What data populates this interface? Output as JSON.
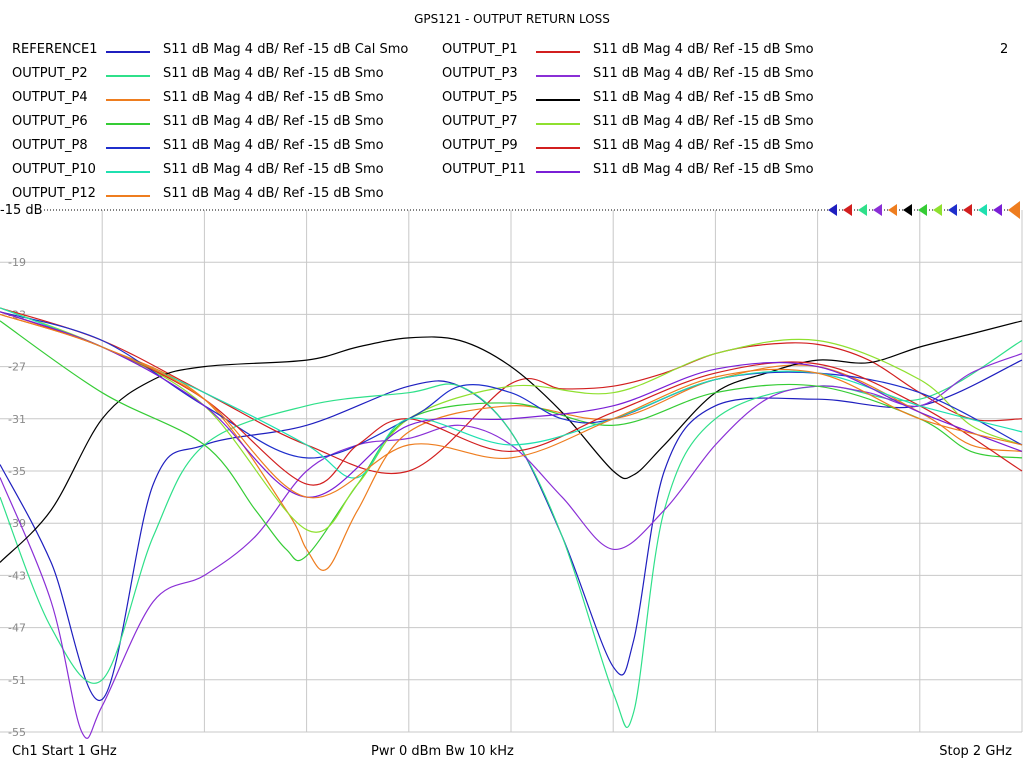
{
  "title": "GPS121 - OUTPUT RETURN LOSS",
  "channel_number": "2",
  "reference_label": "-15 dB",
  "footer": {
    "start": "Ch1  Start  1 GHz",
    "power": "Pwr  0 dBm  Bw  10 kHz",
    "stop": "Stop  2 GHz"
  },
  "legend": [
    {
      "name": "REFERENCE1",
      "desc": "S11  dB Mag  4 dB/ Ref -15 dB  Cal Smo",
      "color": "#1f1fbf"
    },
    {
      "name": "OUTPUT_P1",
      "desc": "S11  dB Mag  4 dB/ Ref -15 dB  Smo",
      "color": "#d21f1f"
    },
    {
      "name": "OUTPUT_P2",
      "desc": "S11  dB Mag  4 dB/ Ref -15 dB  Smo",
      "color": "#2fe08a"
    },
    {
      "name": "OUTPUT_P3",
      "desc": "S11  dB Mag  4 dB/ Ref -15 dB  Smo",
      "color": "#8a2fd6"
    },
    {
      "name": "OUTPUT_P4",
      "desc": "S11  dB Mag  4 dB/ Ref -15 dB  Smo",
      "color": "#ee7d1f"
    },
    {
      "name": "OUTPUT_P5",
      "desc": "S11  dB Mag  4 dB/ Ref -15 dB  Smo",
      "color": "#000000"
    },
    {
      "name": "OUTPUT_P6",
      "desc": "S11  dB Mag  4 dB/ Ref -15 dB  Smo",
      "color": "#35cc35"
    },
    {
      "name": "OUTPUT_P7",
      "desc": "S11  dB Mag  4 dB/ Ref -15 dB  Smo",
      "color": "#8fe02f"
    },
    {
      "name": "OUTPUT_P8",
      "desc": "S11  dB Mag  4 dB/ Ref -15 dB  Smo",
      "color": "#1f2fcc"
    },
    {
      "name": "OUTPUT_P9",
      "desc": "S11  dB Mag  4 dB/ Ref -15 dB  Smo",
      "color": "#d21f1f"
    },
    {
      "name": "OUTPUT_P10",
      "desc": "S11  dB Mag  4 dB/ Ref -15 dB  Smo",
      "color": "#1fe0b0"
    },
    {
      "name": "OUTPUT_P11",
      "desc": "S11  dB Mag  4 dB/ Ref -15 dB  Smo",
      "color": "#7a1fd6"
    },
    {
      "name": "OUTPUT_P12",
      "desc": "S11  dB Mag  4 dB/ Ref -15 dB  Smo",
      "color": "#ee7d1f"
    }
  ],
  "marker_colors": [
    "#1f1fbf",
    "#d21f1f",
    "#2fe08a",
    "#8a2fd6",
    "#ee7d1f",
    "#000000",
    "#35cc35",
    "#8fe02f",
    "#1f2fcc",
    "#d21f1f",
    "#1fe0b0",
    "#7a1fd6",
    "#ee7d1f"
  ],
  "chart_data": {
    "type": "line",
    "title": "GPS121 - OUTPUT RETURN LOSS",
    "x_unit": "GHz",
    "xlim": [
      1,
      2
    ],
    "ylim": [
      -55,
      -15
    ],
    "y_ticks": [
      -19,
      -23,
      -27,
      -31,
      -35,
      -39,
      -43,
      -47,
      -51,
      -55
    ],
    "grid": true,
    "series": [
      {
        "name": "REFERENCE1",
        "color": "#1f1fbf",
        "x": [
          1.0,
          1.05,
          1.1,
          1.15,
          1.2,
          1.3,
          1.4,
          1.45,
          1.5,
          1.55,
          1.6,
          1.62,
          1.65,
          1.7,
          1.8,
          1.9,
          2.0
        ],
        "y": [
          -34.5,
          -42,
          -52.5,
          -36,
          -33,
          -31.5,
          -28.5,
          -28.5,
          -32,
          -40,
          -50,
          -48,
          -35,
          -30,
          -29.5,
          -30,
          -26.5
        ]
      },
      {
        "name": "OUTPUT_P1",
        "color": "#d21f1f",
        "x": [
          1.0,
          1.1,
          1.2,
          1.3,
          1.4,
          1.5,
          1.55,
          1.6,
          1.65,
          1.7,
          1.75,
          1.8,
          1.85,
          1.9,
          1.95,
          2.0
        ],
        "y": [
          -22.5,
          -25,
          -29,
          -33,
          -35,
          -28.3,
          -28.7,
          -28.5,
          -27.5,
          -26,
          -25.3,
          -25.3,
          -26.5,
          -29,
          -31,
          -31
        ]
      },
      {
        "name": "OUTPUT_P2",
        "color": "#2fe08a",
        "x": [
          1.0,
          1.05,
          1.1,
          1.15,
          1.2,
          1.3,
          1.4,
          1.45,
          1.5,
          1.55,
          1.6,
          1.62,
          1.65,
          1.7,
          1.8,
          1.9,
          2.0
        ],
        "y": [
          -37,
          -47,
          -51,
          -40,
          -33,
          -30,
          -29,
          -28.5,
          -32,
          -40,
          -52,
          -53.5,
          -38,
          -31,
          -28.5,
          -29.5,
          -25
        ]
      },
      {
        "name": "OUTPUT_P3",
        "color": "#8a2fd6",
        "x": [
          1.0,
          1.05,
          1.08,
          1.1,
          1.15,
          1.2,
          1.25,
          1.3,
          1.35,
          1.4,
          1.45,
          1.5,
          1.55,
          1.6,
          1.65,
          1.7,
          1.75,
          1.8,
          1.85,
          1.9,
          1.95,
          2.0
        ],
        "y": [
          -35.5,
          -45,
          -55,
          -53,
          -45,
          -43,
          -40,
          -35,
          -33,
          -32.5,
          -31.5,
          -33,
          -37,
          -41,
          -38,
          -33,
          -29.5,
          -28.5,
          -29,
          -30,
          -27.5,
          -26
        ]
      },
      {
        "name": "OUTPUT_P4",
        "color": "#ee7d1f",
        "x": [
          1.0,
          1.1,
          1.2,
          1.28,
          1.3,
          1.32,
          1.35,
          1.4,
          1.5,
          1.6,
          1.7,
          1.8,
          1.9,
          1.95,
          2.0
        ],
        "y": [
          -23,
          -25.5,
          -29.5,
          -38,
          -41,
          -42.5,
          -38,
          -32,
          -30,
          -31,
          -28,
          -27,
          -30.5,
          -33,
          -33.5
        ]
      },
      {
        "name": "OUTPUT_P5",
        "color": "#000000",
        "x": [
          1.0,
          1.05,
          1.1,
          1.15,
          1.2,
          1.3,
          1.35,
          1.4,
          1.45,
          1.5,
          1.55,
          1.6,
          1.62,
          1.65,
          1.7,
          1.75,
          1.8,
          1.85,
          1.9,
          1.95,
          2.0
        ],
        "y": [
          -42,
          -38,
          -31,
          -28,
          -27,
          -26.5,
          -25.5,
          -24.8,
          -25,
          -27,
          -30.5,
          -35,
          -35.3,
          -33,
          -29,
          -27.5,
          -26.5,
          -26.7,
          -25.5,
          -24.5,
          -23.5
        ]
      },
      {
        "name": "OUTPUT_P6",
        "color": "#35cc35",
        "x": [
          1.0,
          1.1,
          1.2,
          1.25,
          1.28,
          1.3,
          1.35,
          1.4,
          1.5,
          1.6,
          1.7,
          1.8,
          1.9,
          1.95,
          2.0
        ],
        "y": [
          -23.5,
          -29,
          -33,
          -38,
          -41,
          -41.5,
          -36,
          -31,
          -29.8,
          -31.5,
          -29,
          -28.5,
          -31,
          -33.5,
          -34
        ]
      },
      {
        "name": "OUTPUT_P7",
        "color": "#8fe02f",
        "x": [
          1.0,
          1.1,
          1.2,
          1.3,
          1.35,
          1.4,
          1.5,
          1.6,
          1.7,
          1.8,
          1.9,
          1.95,
          2.0
        ],
        "y": [
          -22.5,
          -25.5,
          -30,
          -39.5,
          -36,
          -31,
          -28.5,
          -29,
          -26,
          -25,
          -28,
          -31.5,
          -33
        ]
      },
      {
        "name": "OUTPUT_P8",
        "color": "#1f2fcc",
        "x": [
          1.0,
          1.1,
          1.2,
          1.3,
          1.4,
          1.45,
          1.5,
          1.55,
          1.6,
          1.7,
          1.8,
          1.9,
          2.0
        ],
        "y": [
          -22.8,
          -25,
          -30,
          -34,
          -31,
          -28.5,
          -29,
          -31,
          -31,
          -28,
          -27.5,
          -29,
          -33
        ]
      },
      {
        "name": "OUTPUT_P9",
        "color": "#d21f1f",
        "x": [
          1.0,
          1.1,
          1.2,
          1.3,
          1.35,
          1.4,
          1.5,
          1.6,
          1.7,
          1.8,
          1.9,
          2.0
        ],
        "y": [
          -22.8,
          -25.5,
          -29.5,
          -36,
          -33,
          -31,
          -33.5,
          -30.5,
          -27.5,
          -26.8,
          -30,
          -35
        ]
      },
      {
        "name": "OUTPUT_P10",
        "color": "#1fe0b0",
        "x": [
          1.0,
          1.1,
          1.2,
          1.3,
          1.35,
          1.4,
          1.5,
          1.6,
          1.7,
          1.8,
          1.9,
          2.0
        ],
        "y": [
          -22.5,
          -25.5,
          -29,
          -33,
          -35.5,
          -31,
          -33,
          -31,
          -28,
          -27.5,
          -30,
          -32
        ]
      },
      {
        "name": "OUTPUT_P11",
        "color": "#7a1fd6",
        "x": [
          1.0,
          1.1,
          1.2,
          1.3,
          1.4,
          1.5,
          1.6,
          1.7,
          1.8,
          1.9,
          2.0
        ],
        "y": [
          -22.8,
          -25.5,
          -30,
          -37,
          -31.5,
          -31,
          -30,
          -27.2,
          -27,
          -30.5,
          -33.5
        ]
      },
      {
        "name": "OUTPUT_P12",
        "color": "#ee7d1f",
        "x": [
          1.0,
          1.1,
          1.2,
          1.3,
          1.4,
          1.5,
          1.6,
          1.7,
          1.8,
          1.9,
          2.0
        ],
        "y": [
          -23,
          -25.5,
          -29.5,
          -37,
          -33,
          -34,
          -31,
          -27.8,
          -27.5,
          -31,
          -33
        ]
      }
    ]
  }
}
